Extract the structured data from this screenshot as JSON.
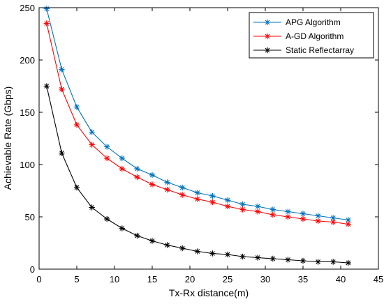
{
  "chart_data": {
    "type": "line",
    "title": "",
    "xlabel": "Tx-Rx distance(m)",
    "ylabel": "Achievable Rate (Gbps)",
    "xlim": [
      0,
      45
    ],
    "ylim": [
      0,
      250
    ],
    "xticks": [
      0,
      5,
      10,
      15,
      20,
      25,
      30,
      35,
      40,
      45
    ],
    "yticks": [
      0,
      50,
      100,
      150,
      200,
      250
    ],
    "grid": false,
    "legend_position": "top-right",
    "x": [
      1,
      3,
      5,
      7,
      9,
      11,
      13,
      15,
      17,
      19,
      21,
      23,
      25,
      27,
      29,
      31,
      33,
      35,
      37,
      39,
      41
    ],
    "series": [
      {
        "name": "APG Algorithm",
        "color": "#0072BD",
        "marker": "asterisk",
        "values": [
          249,
          191,
          155,
          131,
          117,
          106,
          96,
          90,
          83,
          78,
          73,
          70,
          66,
          62,
          60,
          57,
          55,
          53,
          51,
          49,
          47
        ]
      },
      {
        "name": "A-GD Algorithm",
        "color": "#FF0000",
        "marker": "asterisk",
        "values": [
          235,
          172,
          138,
          119,
          106,
          96,
          88,
          81,
          76,
          71,
          67,
          64,
          60,
          57,
          55,
          52,
          50,
          48,
          46,
          45,
          43
        ]
      },
      {
        "name": "Static Reflectarray",
        "color": "#000000",
        "marker": "asterisk",
        "values": [
          175,
          111,
          78,
          59,
          48,
          39,
          32,
          27,
          23,
          20,
          17,
          15,
          14,
          12,
          11,
          10,
          9,
          8,
          7,
          7,
          6
        ]
      }
    ]
  }
}
